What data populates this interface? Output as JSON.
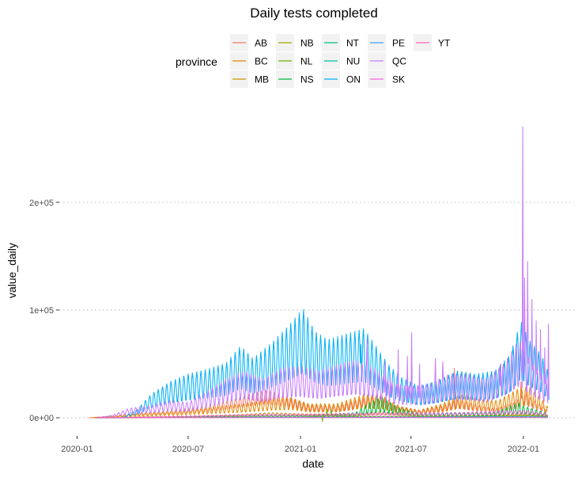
{
  "chart_data": {
    "type": "line",
    "title": "Daily tests completed",
    "xlabel": "date",
    "ylabel": "value_daily",
    "x_range": [
      "2019-12-03",
      "2022-03-25"
    ],
    "ylim": [
      -8000,
      285000
    ],
    "x_ticks": [
      {
        "date": "2020-01-01",
        "label": "2020-01"
      },
      {
        "date": "2020-07-01",
        "label": "2020-07"
      },
      {
        "date": "2021-01-01",
        "label": "2021-01"
      },
      {
        "date": "2021-07-01",
        "label": "2021-07"
      },
      {
        "date": "2022-01-01",
        "label": "2022-01"
      }
    ],
    "y_ticks": [
      {
        "value": 0,
        "label": "0e+00"
      },
      {
        "value": 100000,
        "label": "1e+05"
      },
      {
        "value": 200000,
        "label": "2e+05"
      }
    ],
    "grid": "horizontal dotted",
    "legend": {
      "title": "province",
      "placement": "top",
      "columns": 5
    },
    "series": [
      {
        "name": "AB",
        "color": "#F8766D",
        "period": 7,
        "amp": 0.35,
        "points": [
          [
            "2020-01-20",
            0
          ],
          [
            "2020-03-05",
            1500
          ],
          [
            "2020-04-10",
            3500
          ],
          [
            "2020-06-01",
            5000
          ],
          [
            "2020-08-01",
            8000
          ],
          [
            "2020-09-20",
            14000
          ],
          [
            "2020-11-05",
            19000
          ],
          [
            "2020-12-10",
            15000
          ],
          [
            "2021-01-15",
            9000
          ],
          [
            "2021-03-01",
            8000
          ],
          [
            "2021-04-15",
            14000
          ],
          [
            "2021-05-10",
            16000
          ],
          [
            "2021-06-01",
            9000
          ],
          [
            "2021-07-15",
            5000
          ],
          [
            "2021-08-25",
            9000
          ],
          [
            "2021-09-15",
            13000
          ],
          [
            "2021-10-15",
            9000
          ],
          [
            "2021-11-15",
            6000
          ],
          [
            "2021-12-15",
            10000
          ],
          [
            "2022-01-05",
            17000
          ],
          [
            "2022-01-25",
            10000
          ],
          [
            "2022-02-10",
            6000
          ]
        ],
        "spikes": [
          [
            "2021-09-10",
            46000
          ],
          [
            "2021-12-28",
            33000
          ],
          [
            "2022-01-07",
            27000
          ]
        ]
      },
      {
        "name": "BC",
        "color": "#E58700",
        "period": 7,
        "amp": 0.45,
        "points": [
          [
            "2020-01-25",
            0
          ],
          [
            "2020-03-10",
            1500
          ],
          [
            "2020-05-01",
            3000
          ],
          [
            "2020-06-15",
            4000
          ],
          [
            "2020-08-15",
            7000
          ],
          [
            "2020-10-01",
            9000
          ],
          [
            "2020-11-15",
            12000
          ],
          [
            "2020-12-15",
            13000
          ],
          [
            "2021-01-15",
            9000
          ],
          [
            "2021-03-01",
            9000
          ],
          [
            "2021-04-15",
            15000
          ],
          [
            "2021-05-15",
            14000
          ],
          [
            "2021-06-15",
            7000
          ],
          [
            "2021-07-15",
            5000
          ],
          [
            "2021-08-20",
            9000
          ],
          [
            "2021-09-20",
            15000
          ],
          [
            "2021-10-20",
            12000
          ],
          [
            "2021-11-20",
            11000
          ],
          [
            "2021-12-20",
            18000
          ],
          [
            "2022-01-10",
            20000
          ],
          [
            "2022-01-31",
            12000
          ],
          [
            "2022-02-10",
            7000
          ]
        ],
        "spikes": []
      },
      {
        "name": "MB",
        "color": "#C99800",
        "period": 7,
        "amp": 0.4,
        "points": [
          [
            "2020-02-01",
            0
          ],
          [
            "2020-04-01",
            600
          ],
          [
            "2020-07-01",
            1000
          ],
          [
            "2020-09-15",
            2000
          ],
          [
            "2020-11-15",
            3500
          ],
          [
            "2021-01-15",
            2500
          ],
          [
            "2021-04-01",
            2500
          ],
          [
            "2021-05-15",
            4500
          ],
          [
            "2021-07-15",
            2000
          ],
          [
            "2021-10-15",
            2000
          ],
          [
            "2022-01-05",
            3500
          ],
          [
            "2022-02-10",
            2000
          ]
        ],
        "spikes": []
      },
      {
        "name": "NB",
        "color": "#A3A500",
        "period": 7,
        "amp": 0.5,
        "points": [
          [
            "2020-02-01",
            0
          ],
          [
            "2020-06-01",
            300
          ],
          [
            "2020-10-01",
            500
          ],
          [
            "2021-01-15",
            600
          ],
          [
            "2021-05-01",
            900
          ],
          [
            "2021-09-01",
            1200
          ],
          [
            "2021-11-15",
            1500
          ],
          [
            "2022-01-05",
            2500
          ],
          [
            "2022-02-10",
            1200
          ]
        ],
        "spikes": []
      },
      {
        "name": "NL",
        "color": "#6BB100",
        "period": 7,
        "amp": 0.5,
        "points": [
          [
            "2020-02-01",
            0
          ],
          [
            "2020-06-01",
            300
          ],
          [
            "2021-01-15",
            600
          ],
          [
            "2021-02-20",
            2500
          ],
          [
            "2021-03-15",
            1000
          ],
          [
            "2021-09-01",
            600
          ],
          [
            "2022-01-05",
            1500
          ],
          [
            "2022-02-10",
            800
          ]
        ],
        "spikes": [
          [
            "2021-02-06",
            -3500
          ],
          [
            "2021-02-13",
            8000
          ],
          [
            "2021-02-20",
            7000
          ]
        ]
      },
      {
        "name": "NS",
        "color": "#00BA38",
        "period": 7,
        "amp": 0.6,
        "points": [
          [
            "2020-02-01",
            0
          ],
          [
            "2020-06-01",
            500
          ],
          [
            "2020-11-15",
            1500
          ],
          [
            "2021-01-15",
            1500
          ],
          [
            "2021-04-01",
            3000
          ],
          [
            "2021-04-25",
            9000
          ],
          [
            "2021-05-15",
            12000
          ],
          [
            "2021-06-10",
            6000
          ],
          [
            "2021-07-15",
            2500
          ],
          [
            "2021-09-15",
            3000
          ],
          [
            "2021-11-15",
            3500
          ],
          [
            "2021-12-20",
            8000
          ],
          [
            "2022-01-10",
            6000
          ],
          [
            "2022-02-10",
            2500
          ]
        ],
        "spikes": [
          [
            "2021-05-07",
            19000
          ],
          [
            "2021-05-14",
            17000
          ],
          [
            "2021-06-03",
            9500
          ],
          [
            "2021-12-24",
            14000
          ]
        ]
      },
      {
        "name": "NT",
        "color": "#00BF7D",
        "period": 7,
        "amp": 0.4,
        "points": [
          [
            "2020-02-01",
            0
          ],
          [
            "2021-01-01",
            200
          ],
          [
            "2022-01-05",
            400
          ],
          [
            "2022-02-10",
            200
          ]
        ],
        "spikes": []
      },
      {
        "name": "NU",
        "color": "#00C1A3",
        "period": 7,
        "amp": 0.4,
        "points": [
          [
            "2020-02-01",
            0
          ],
          [
            "2021-01-01",
            150
          ],
          [
            "2022-01-05",
            300
          ],
          [
            "2022-02-10",
            150
          ]
        ],
        "spikes": []
      },
      {
        "name": "ON",
        "color": "#00B0F6",
        "period": 7,
        "amp": 0.45,
        "points": [
          [
            "2020-03-15",
            0
          ],
          [
            "2020-04-10",
            6000
          ],
          [
            "2020-05-01",
            15000
          ],
          [
            "2020-06-01",
            23000
          ],
          [
            "2020-07-01",
            28000
          ],
          [
            "2020-08-01",
            31000
          ],
          [
            "2020-09-01",
            35000
          ],
          [
            "2020-09-25",
            46000
          ],
          [
            "2020-10-15",
            38000
          ],
          [
            "2020-11-15",
            48000
          ],
          [
            "2020-12-15",
            60000
          ],
          [
            "2021-01-05",
            70000
          ],
          [
            "2021-01-25",
            55000
          ],
          [
            "2021-02-15",
            50000
          ],
          [
            "2021-03-20",
            54000
          ],
          [
            "2021-04-15",
            57000
          ],
          [
            "2021-05-01",
            48000
          ],
          [
            "2021-05-25",
            34000
          ],
          [
            "2021-06-15",
            26000
          ],
          [
            "2021-07-15",
            20000
          ],
          [
            "2021-08-15",
            24000
          ],
          [
            "2021-09-15",
            30000
          ],
          [
            "2021-10-15",
            28000
          ],
          [
            "2021-11-15",
            30000
          ],
          [
            "2021-12-10",
            40000
          ],
          [
            "2021-12-28",
            62000
          ],
          [
            "2022-01-10",
            50000
          ],
          [
            "2022-01-31",
            40000
          ],
          [
            "2022-02-12",
            28000
          ]
        ],
        "spikes": [
          [
            "2021-04-10",
            68000
          ],
          [
            "2021-12-30",
            73000
          ]
        ]
      },
      {
        "name": "PE",
        "color": "#35A2FF",
        "period": 7,
        "amp": 0.4,
        "points": [
          [
            "2020-02-01",
            0
          ],
          [
            "2021-01-01",
            400
          ],
          [
            "2022-01-05",
            1000
          ],
          [
            "2022-02-10",
            600
          ]
        ],
        "spikes": []
      },
      {
        "name": "QC",
        "color": "#C77CFF",
        "period": 7,
        "amp": 0.45,
        "points": [
          [
            "2020-02-05",
            0
          ],
          [
            "2020-03-01",
            2000
          ],
          [
            "2020-03-25",
            6000
          ],
          [
            "2020-05-01",
            8000
          ],
          [
            "2020-06-01",
            11000
          ],
          [
            "2020-07-01",
            10000
          ],
          [
            "2020-08-01",
            17000
          ],
          [
            "2020-09-01",
            25000
          ],
          [
            "2020-10-01",
            30000
          ],
          [
            "2020-11-01",
            25000
          ],
          [
            "2020-12-01",
            32000
          ],
          [
            "2021-01-01",
            33000
          ],
          [
            "2021-02-01",
            30000
          ],
          [
            "2021-03-01",
            34000
          ],
          [
            "2021-04-01",
            37000
          ],
          [
            "2021-05-01",
            32000
          ],
          [
            "2021-06-01",
            22000
          ],
          [
            "2021-07-01",
            20000
          ],
          [
            "2021-08-01",
            22000
          ],
          [
            "2021-09-01",
            28000
          ],
          [
            "2021-10-01",
            28000
          ],
          [
            "2021-11-01",
            25000
          ],
          [
            "2021-12-01",
            35000
          ],
          [
            "2021-12-25",
            50000
          ],
          [
            "2022-01-15",
            35000
          ],
          [
            "2022-02-12",
            22000
          ]
        ],
        "spikes": [
          [
            "2021-04-20",
            73000
          ],
          [
            "2021-05-20",
            52000
          ],
          [
            "2021-05-28",
            40000
          ],
          [
            "2021-06-10",
            63000
          ],
          [
            "2021-06-25",
            57000
          ],
          [
            "2021-07-02",
            79000
          ],
          [
            "2021-07-15",
            50000
          ],
          [
            "2021-08-10",
            55000
          ],
          [
            "2021-08-22",
            52000
          ],
          [
            "2021-11-25",
            50000
          ],
          [
            "2021-12-18",
            48000
          ],
          [
            "2021-12-31",
            270000
          ],
          [
            "2022-01-03",
            130000
          ],
          [
            "2022-01-08",
            145000
          ],
          [
            "2022-01-15",
            110000
          ],
          [
            "2022-01-22",
            90000
          ],
          [
            "2022-01-29",
            82000
          ],
          [
            "2022-02-05",
            65000
          ],
          [
            "2022-02-11",
            87000
          ]
        ]
      },
      {
        "name": "SK",
        "color": "#F564E3",
        "period": 7,
        "amp": 0.4,
        "points": [
          [
            "2020-02-01",
            0
          ],
          [
            "2020-05-01",
            600
          ],
          [
            "2020-11-01",
            2500
          ],
          [
            "2021-01-15",
            2500
          ],
          [
            "2021-05-15",
            3500
          ],
          [
            "2021-09-15",
            3500
          ],
          [
            "2022-01-05",
            5000
          ],
          [
            "2022-02-10",
            2500
          ]
        ],
        "spikes": []
      },
      {
        "name": "YT",
        "color": "#FF64B0",
        "period": 7,
        "amp": 0.4,
        "points": [
          [
            "2020-02-01",
            0
          ],
          [
            "2021-01-01",
            100
          ],
          [
            "2022-01-05",
            200
          ],
          [
            "2022-02-10",
            100
          ]
        ],
        "spikes": []
      }
    ]
  }
}
